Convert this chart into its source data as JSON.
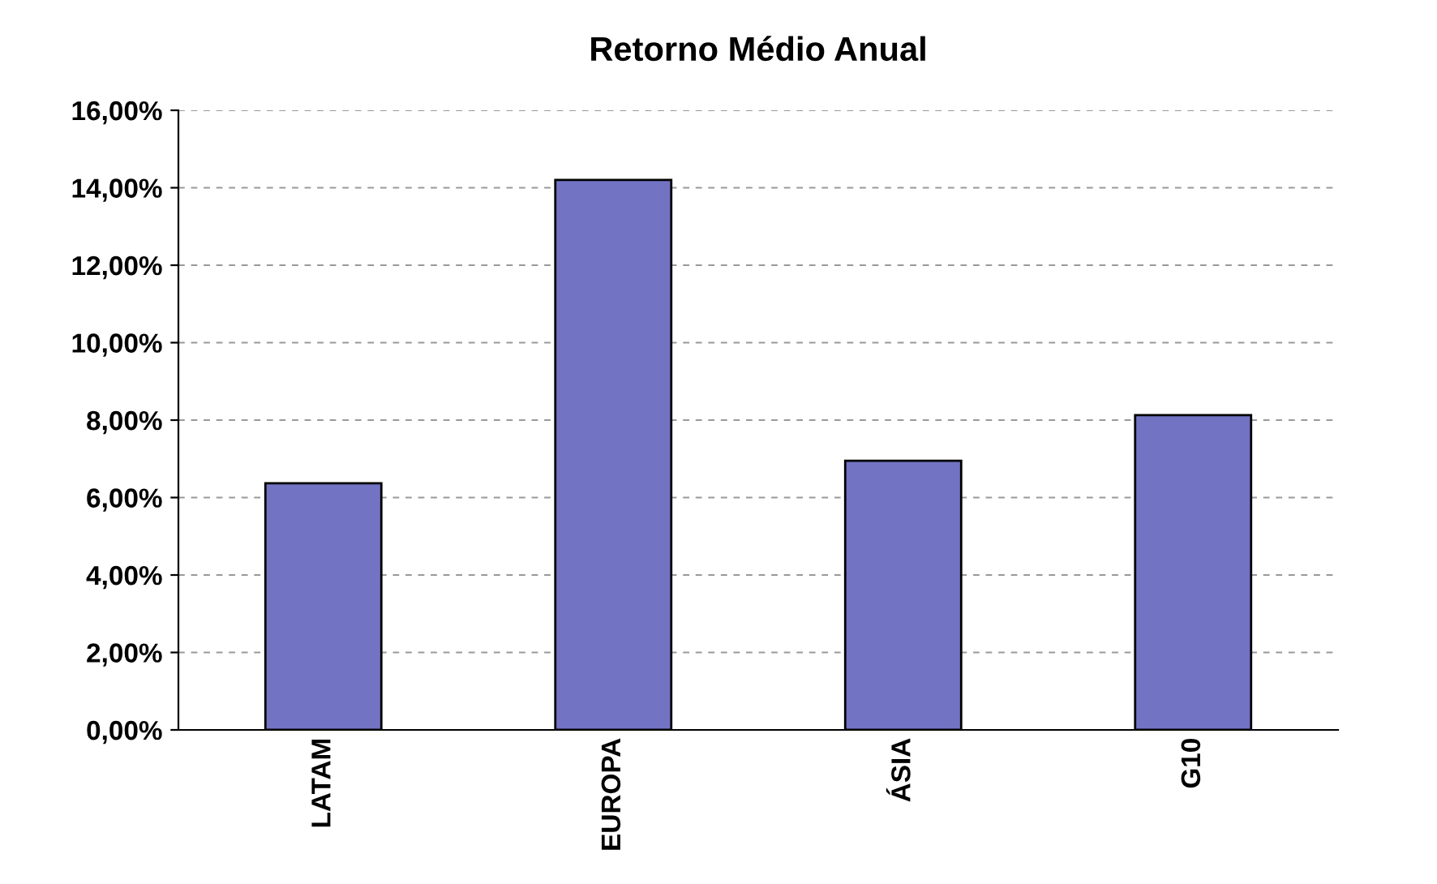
{
  "chart_data": {
    "type": "bar",
    "title": "Retorno Médio Anual",
    "categories": [
      "LATAM",
      "EUROPA",
      "ÁSIA",
      "G10"
    ],
    "values": [
      6.37,
      14.2,
      6.95,
      8.13
    ],
    "color": "#7373c4",
    "ylim": [
      0,
      16
    ],
    "yticks": [
      {
        "value": 0,
        "label": "0,00%"
      },
      {
        "value": 2,
        "label": "2,00%"
      },
      {
        "value": 4,
        "label": "4,00%"
      },
      {
        "value": 6,
        "label": "6,00%"
      },
      {
        "value": 8,
        "label": "8,00%"
      },
      {
        "value": 10,
        "label": "10,00%"
      },
      {
        "value": 12,
        "label": "12,00%"
      },
      {
        "value": 14,
        "label": "14,00%"
      },
      {
        "value": 16,
        "label": "16,00%"
      }
    ],
    "grid": "y"
  }
}
